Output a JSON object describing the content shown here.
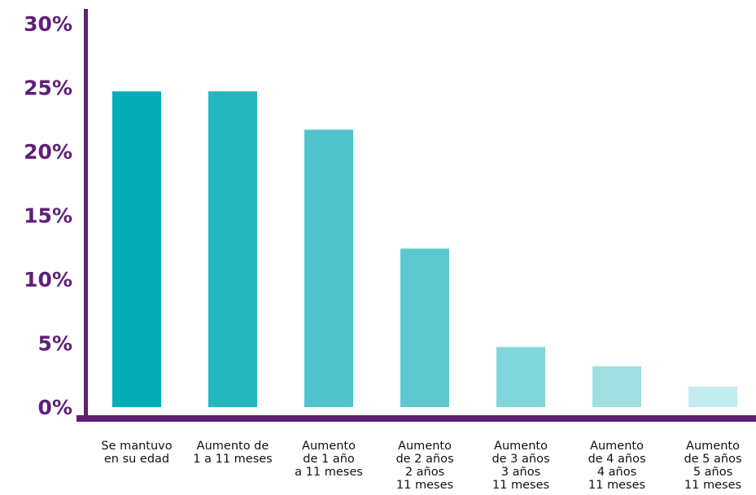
{
  "chart_data": {
    "type": "bar",
    "categories": [
      [
        "Se mantuvo",
        "en su edad"
      ],
      [
        "Aumento de",
        "1 a 11 meses"
      ],
      [
        "Aumento",
        "de 1 año",
        "a 11 meses"
      ],
      [
        "Aumento",
        "de 2 años",
        "2 años",
        "11 meses"
      ],
      [
        "Aumento",
        "de 3 años",
        "3 años",
        "11 meses"
      ],
      [
        "Aumento",
        "de 4 años",
        "4 años",
        "11 meses"
      ],
      [
        "Aumento",
        "de 5 años",
        "5 años",
        "11 meses"
      ]
    ],
    "values": [
      24.7,
      24.7,
      21.7,
      12.4,
      4.7,
      3.2,
      1.6
    ],
    "ylim": [
      0,
      30
    ],
    "yticks": [
      "0%",
      "5%",
      "10%",
      "15%",
      "20%",
      "25%",
      "30%"
    ],
    "title": "",
    "xlabel": "",
    "ylabel": "",
    "grid": false,
    "colors": {
      "axis": "#5e2076",
      "tick_text": "#5e2076",
      "category_text": "#111111",
      "bars": [
        "#04adb6",
        "#25b5bd",
        "#4fc4cb",
        "#5cc9cf",
        "#80d6da",
        "#9fdfe2",
        "#c3ecee"
      ]
    }
  }
}
